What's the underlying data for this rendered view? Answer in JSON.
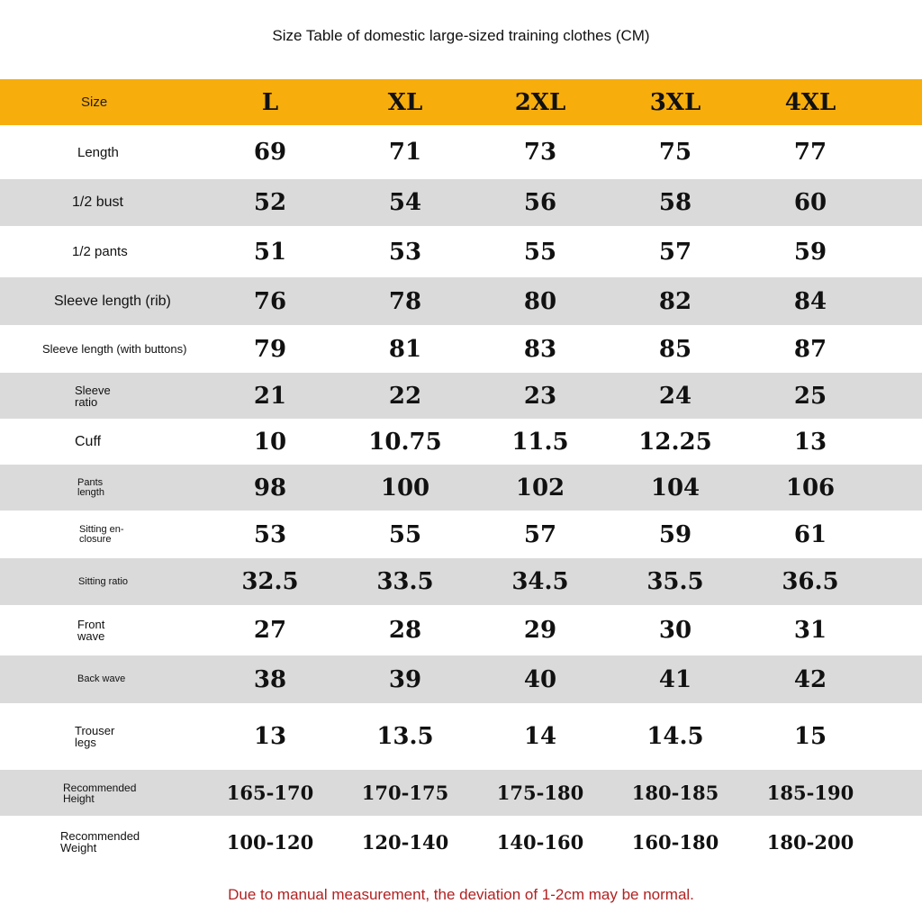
{
  "title": "Size Table of domestic large-sized training clothes (CM)",
  "colors": {
    "header_bg": "#f7ad0c",
    "stripe": "#dadada",
    "note": "#b22222"
  },
  "header": {
    "label": "Size",
    "sizes": [
      "L",
      "XL",
      "2XL",
      "3XL",
      "4XL"
    ]
  },
  "rows": [
    {
      "label": "Length",
      "values": [
        "69",
        "71",
        "73",
        "75",
        "77"
      ]
    },
    {
      "label": "1/2 bust",
      "values": [
        "52",
        "54",
        "56",
        "58",
        "60"
      ]
    },
    {
      "label": "1/2 pants",
      "values": [
        "51",
        "53",
        "55",
        "57",
        "59"
      ]
    },
    {
      "label": "Sleeve length (rib)",
      "values": [
        "76",
        "78",
        "80",
        "82",
        "84"
      ]
    },
    {
      "label": "Sleeve length (with buttons)",
      "values": [
        "79",
        "81",
        "83",
        "85",
        "87"
      ]
    },
    {
      "label": "Sleeve ratio",
      "values": [
        "21",
        "22",
        "23",
        "24",
        "25"
      ]
    },
    {
      "label": "Cuff",
      "values": [
        "10",
        "10.75",
        "11.5",
        "12.25",
        "13"
      ]
    },
    {
      "label": "Pants length",
      "values": [
        "98",
        "100",
        "102",
        "104",
        "106"
      ]
    },
    {
      "label": "Sitting en-closure",
      "values": [
        "53",
        "55",
        "57",
        "59",
        "61"
      ]
    },
    {
      "label": "Sitting ratio",
      "values": [
        "32.5",
        "33.5",
        "34.5",
        "35.5",
        "36.5"
      ]
    },
    {
      "label": "Front wave",
      "values": [
        "27",
        "28",
        "29",
        "30",
        "31"
      ]
    },
    {
      "label": "Back wave",
      "values": [
        "38",
        "39",
        "40",
        "41",
        "42"
      ]
    },
    {
      "label": "Trouser legs",
      "values": [
        "13",
        "13.5",
        "14",
        "14.5",
        "15"
      ]
    },
    {
      "label": "Recommended Height",
      "values": [
        "165-170",
        "170-175",
        "175-180",
        "180-185",
        "185-190"
      ]
    },
    {
      "label": "Recommended Weight",
      "values": [
        "100-120",
        "120-140",
        "140-160",
        "160-180",
        "180-200"
      ]
    }
  ],
  "note": "Due to manual measurement, the deviation of 1-2cm may be normal."
}
